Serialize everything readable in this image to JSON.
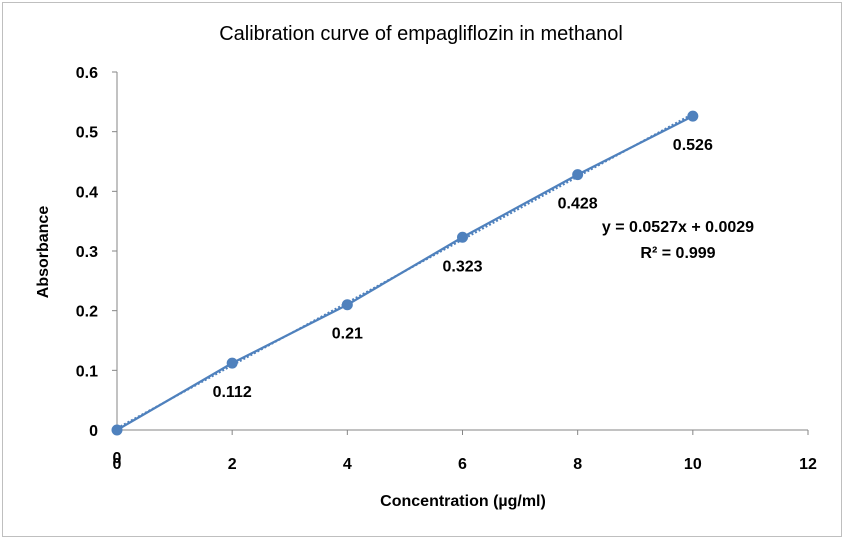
{
  "chart_data": {
    "type": "scatter",
    "title": "Calibration curve of empagliflozin in methanol",
    "xlabel": "Concentration (µg/ml)",
    "ylabel": "Absorbance",
    "xlim": [
      0,
      12
    ],
    "ylim": [
      0,
      0.6
    ],
    "x_ticks": [
      0,
      2,
      4,
      6,
      8,
      10,
      12
    ],
    "x_tick_labels": [
      "0",
      "2",
      "4",
      "6",
      "8",
      "10",
      "12"
    ],
    "y_ticks": [
      0,
      0.1,
      0.2,
      0.3,
      0.4,
      0.5,
      0.6
    ],
    "y_tick_labels": [
      "0",
      "0.1",
      "0.2",
      "0.3",
      "0.4",
      "0.5",
      "0.6"
    ],
    "grid": false,
    "series": [
      {
        "x": [
          0,
          2,
          4,
          6,
          8,
          10
        ],
        "y": [
          0,
          0.112,
          0.21,
          0.323,
          0.428,
          0.526
        ],
        "data_labels": [
          "0",
          "0.112",
          "0.21",
          "0.323",
          "0.428",
          "0.526"
        ],
        "color": "#4F81BD"
      }
    ],
    "trendline": {
      "type": "linear",
      "slope": 0.0527,
      "intercept": 0.0029,
      "equation": "y = 0.0527x + 0.0029",
      "r_squared": "R² = 0.999",
      "style": "dotted"
    }
  }
}
